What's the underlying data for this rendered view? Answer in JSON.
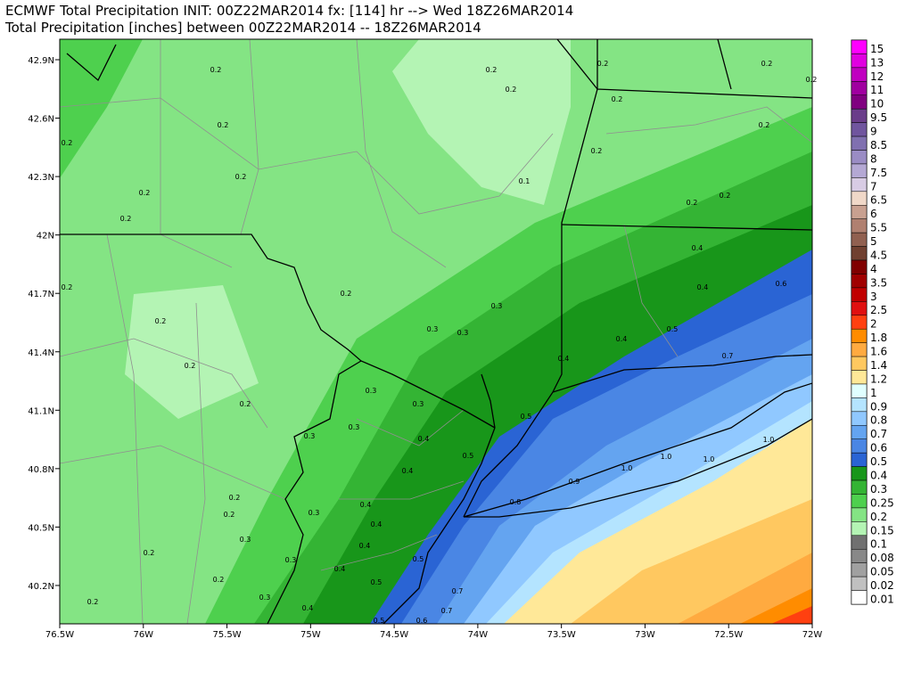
{
  "header": {
    "title": "ECMWF Total Precipitation INIT: 00Z22MAR2014 fx: [114] hr --> Wed 18Z26MAR2014",
    "subtitle": "Total Precipitation [inches] between 00Z22MAR2014 -- 18Z26MAR2014"
  },
  "map": {
    "lon_labels": [
      "76.5W",
      "76W",
      "75.5W",
      "75W",
      "74.5W",
      "74W",
      "73.5W",
      "73W",
      "72.5W",
      "72W"
    ],
    "lat_labels": [
      "42.9N",
      "42.6N",
      "42.3N",
      "42N",
      "41.7N",
      "41.4N",
      "41.1N",
      "40.8N",
      "40.5N",
      "40.2N"
    ],
    "contour_labels": [
      "0.2",
      "0.2",
      "0.2",
      "0.2",
      "0.2",
      "0.2",
      "0.2",
      "0.2",
      "0.2",
      "0.2",
      "0.2",
      "0.2",
      "0.2",
      "0.1",
      "0.2",
      "0.2",
      "0.2",
      "0.4",
      "0.2",
      "0.2",
      "0.4",
      "0.6",
      "0.3",
      "0.2",
      "0.3",
      "0.3",
      "0.5",
      "0.4",
      "0.2",
      "0.4",
      "0.7",
      "0.3",
      "0.3",
      "0.2",
      "0.5",
      "0.3",
      "0.4",
      "0.3",
      "1.0",
      "1.0",
      "1.0",
      "0.5",
      "0.4",
      "1.0",
      "0.9",
      "0.2",
      "0.4",
      "0.8",
      "0.2",
      "0.3",
      "0.4",
      "0.3",
      "0.4",
      "0.2",
      "0.3",
      "0.5",
      "0.2",
      "0.4",
      "0.5",
      "0.3",
      "0.7",
      "0.2",
      "0.4",
      "0.7",
      "0.5",
      "0.6"
    ]
  },
  "colorbar": {
    "labels": [
      "15",
      "13",
      "12",
      "11",
      "10",
      "9.5",
      "9",
      "8.5",
      "8",
      "7.5",
      "7",
      "6.5",
      "6",
      "5.5",
      "5",
      "4.5",
      "4",
      "3.5",
      "3",
      "2.5",
      "2",
      "1.8",
      "1.6",
      "1.4",
      "1.2",
      "1",
      "0.9",
      "0.8",
      "0.7",
      "0.6",
      "0.5",
      "0.4",
      "0.3",
      "0.25",
      "0.2",
      "0.15",
      "0.1",
      "0.08",
      "0.05",
      "0.02",
      "0.01"
    ],
    "colors": [
      "#ff00ff",
      "#e000e0",
      "#c000c0",
      "#a000a0",
      "#800080",
      "#6a3d8a",
      "#70559e",
      "#8070b0",
      "#9a8cc4",
      "#b4a8d4",
      "#d8cce4",
      "#f0d8c8",
      "#c8a090",
      "#b08070",
      "#906050",
      "#704030",
      "#800000",
      "#a00000",
      "#c00000",
      "#e01010",
      "#ff4010",
      "#ff8c00",
      "#ffaa40",
      "#ffc860",
      "#ffe898",
      "#e0ffff",
      "#b4e4ff",
      "#90c8ff",
      "#64a4f0",
      "#4a86e4",
      "#2a64d4",
      "#18961a",
      "#34b434",
      "#4ed04e",
      "#84e484",
      "#b4f4b4",
      "#707070",
      "#888888",
      "#a0a0a0",
      "#c0c0c0",
      "#ffffff"
    ]
  }
}
